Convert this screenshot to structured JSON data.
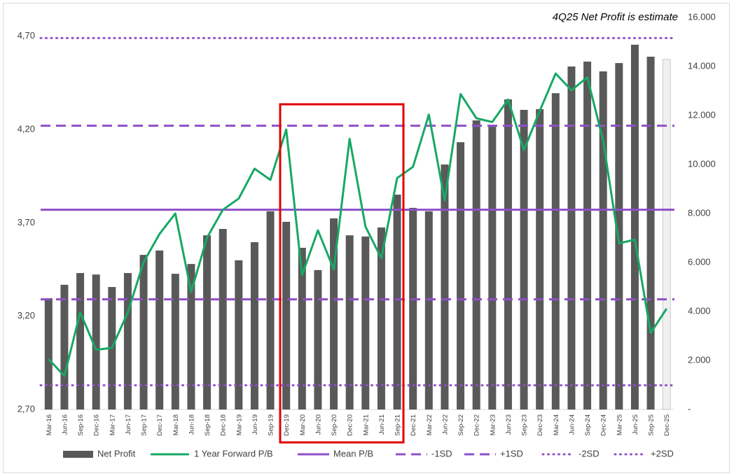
{
  "chart_data": {
    "type": "bar_line",
    "annotation": "4Q25 Net Profit is estimate",
    "categories": [
      "Mar-16",
      "Jun-16",
      "Sep-16",
      "Dec-16",
      "Mar-17",
      "Jun-17",
      "Sep-17",
      "Dec-17",
      "Mar-18",
      "Jun-18",
      "Sep-18",
      "Dec-18",
      "Mar-19",
      "Jun-19",
      "Sep-19",
      "Dec-19",
      "Mar-20",
      "Jun-20",
      "Sep-20",
      "Dec-20",
      "Mar-21",
      "Jun-21",
      "Sep-21",
      "Dec-21",
      "Mar-22",
      "Jun-22",
      "Sep-22",
      "Dec-22",
      "Mar-23",
      "Jun-23",
      "Sep-23",
      "Dec-23",
      "Mar-24",
      "Jun-24",
      "Sep-24",
      "Dec-24",
      "Mar-25",
      "Jun-25",
      "Sep-25",
      "Dec-25"
    ],
    "series": [
      {
        "name": "Net Profit",
        "type": "bar",
        "axis": "y2",
        "color": "#595959",
        "colors": [
          "#595959",
          "#595959",
          "#595959",
          "#595959",
          "#595959",
          "#595959",
          "#595959",
          "#595959",
          "#595959",
          "#595959",
          "#595959",
          "#595959",
          "#595959",
          "#595959",
          "#595959",
          "#595959",
          "#595959",
          "#595959",
          "#595959",
          "#595959",
          "#595959",
          "#595959",
          "#595959",
          "#595959",
          "#595959",
          "#595959",
          "#595959",
          "#595959",
          "#595959",
          "#595959",
          "#595959",
          "#595959",
          "#595959",
          "#595959",
          "#595959",
          "#595959",
          "#595959",
          "#595959",
          "#595959",
          "#f0f0f0"
        ],
        "values": [
          4540,
          5090,
          5570,
          5510,
          5000,
          5570,
          6310,
          6490,
          5540,
          5940,
          7110,
          7370,
          6090,
          6830,
          8090,
          7660,
          6600,
          5690,
          7800,
          7110,
          7060,
          7430,
          8770,
          8230,
          8090,
          10000,
          10910,
          11800,
          11540,
          12660,
          12230,
          12260,
          12910,
          14000,
          14200,
          13800,
          14140,
          14890,
          14400,
          14290
        ]
      },
      {
        "name": "1 Year Forward P/B",
        "type": "line",
        "color": "#17a865",
        "values": [
          2.97,
          2.88,
          3.22,
          3.02,
          3.03,
          3.22,
          3.49,
          3.64,
          3.75,
          3.33,
          3.62,
          3.77,
          3.83,
          3.99,
          3.93,
          4.2,
          3.42,
          3.66,
          3.45,
          4.15,
          3.68,
          3.51,
          3.94,
          4.0,
          4.28,
          3.82,
          4.39,
          4.26,
          4.24,
          4.36,
          4.09,
          4.3,
          4.5,
          4.41,
          4.48,
          4.14,
          3.59,
          3.61,
          3.11,
          3.24
        ]
      }
    ],
    "reference_lines": [
      {
        "name": "Mean P/B",
        "value": 3.77,
        "style": "solid",
        "color": "#8f4fc8"
      },
      {
        "name": "-1SD",
        "value": 3.29,
        "style": "dashed",
        "color": "#8f4fc8"
      },
      {
        "name": "+1SD",
        "value": 4.22,
        "style": "dashed",
        "color": "#8f4fc8"
      },
      {
        "name": "-2SD",
        "value": 2.83,
        "style": "dotted",
        "color": "#8f4fc8"
      },
      {
        "name": "+2SD",
        "value": 4.69,
        "style": "dotted",
        "color": "#8f4fc8"
      }
    ],
    "ylim": [
      2.7,
      4.8
    ],
    "yticks": [
      {
        "value": 2.7,
        "label": "2,70"
      },
      {
        "value": 3.2,
        "label": "3,20"
      },
      {
        "value": 3.7,
        "label": "3,70"
      },
      {
        "value": 4.2,
        "label": "4,20"
      },
      {
        "value": 4.7,
        "label": "4,70"
      }
    ],
    "y2lim": [
      0,
      16000
    ],
    "y2ticks": [
      {
        "value": 0,
        "label": "-"
      },
      {
        "value": 2000,
        "label": "2.000"
      },
      {
        "value": 4000,
        "label": "4.000"
      },
      {
        "value": 6000,
        "label": "6.000"
      },
      {
        "value": 8000,
        "label": "8.000"
      },
      {
        "value": 10000,
        "label": "10.000"
      },
      {
        "value": 12000,
        "label": "12.000"
      },
      {
        "value": 14000,
        "label": "14.000"
      },
      {
        "value": 16000,
        "label": "16.000"
      }
    ],
    "legend": "bottom"
  }
}
